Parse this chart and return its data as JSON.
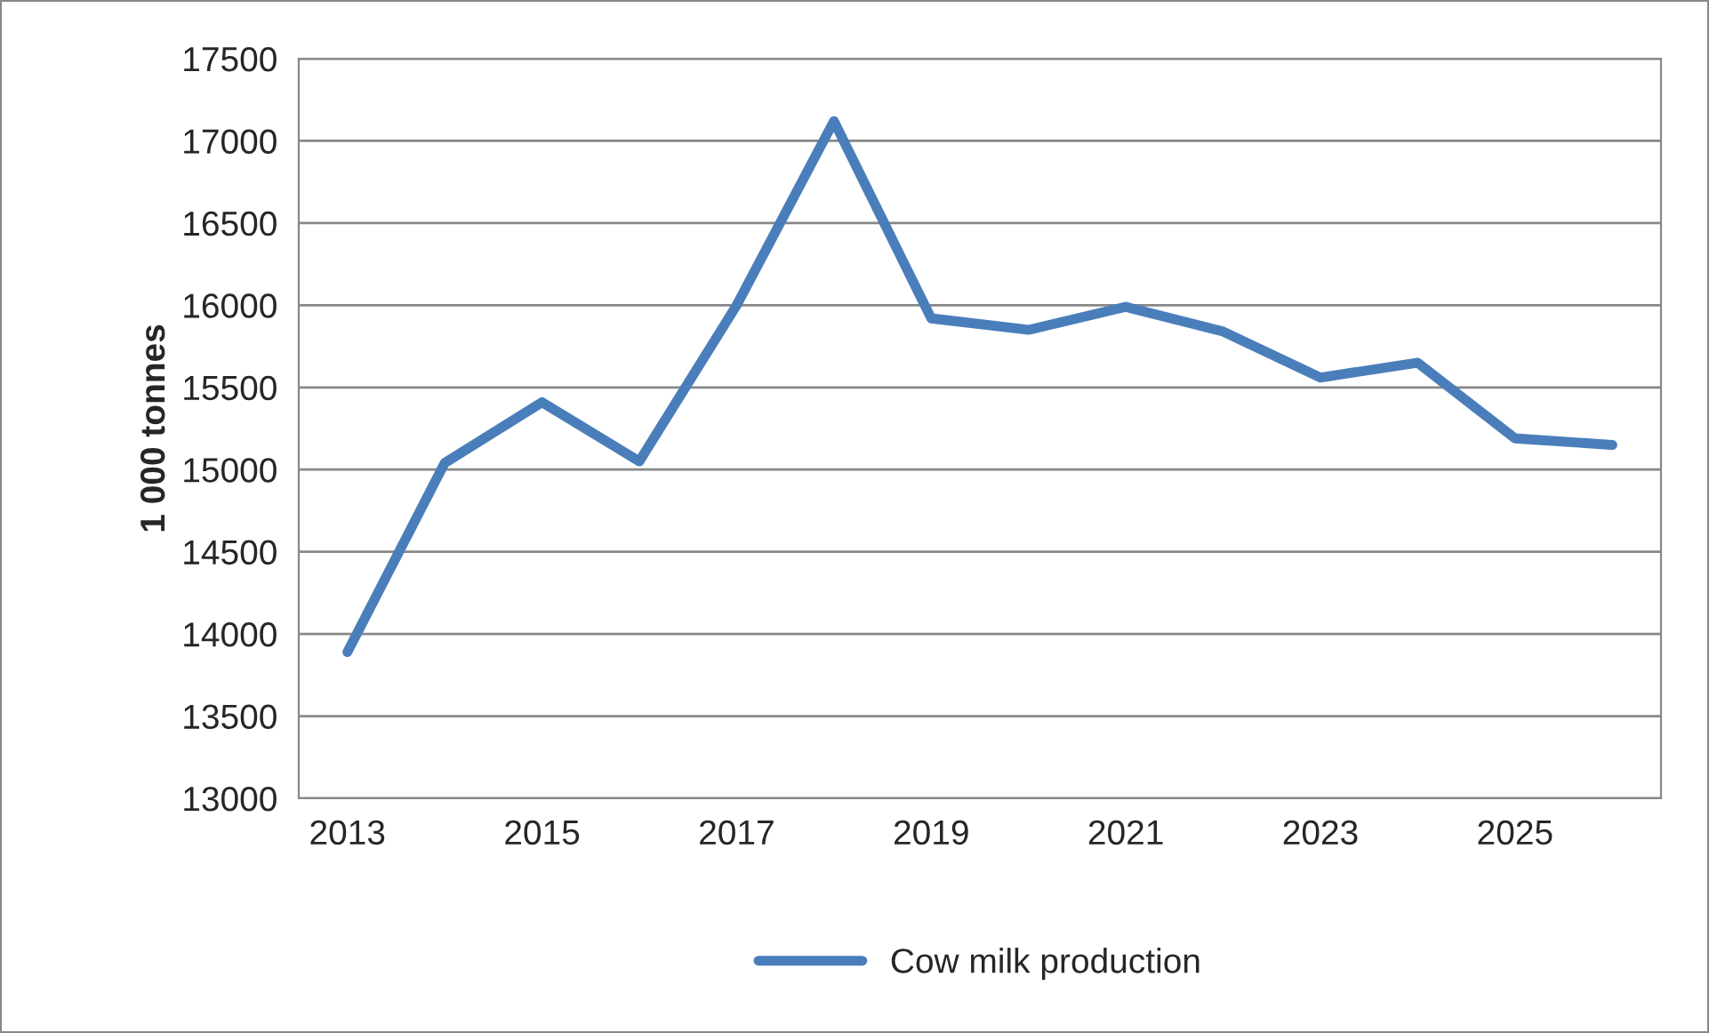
{
  "chart_data": {
    "type": "line",
    "ylabel": "1 000 tonnes",
    "x": [
      2013,
      2014,
      2015,
      2016,
      2017,
      2018,
      2019,
      2020,
      2021,
      2022,
      2023,
      2024,
      2025,
      2026
    ],
    "series": [
      {
        "name": "Cow milk production",
        "color": "#4a7ebb",
        "values": [
          13890,
          15040,
          15410,
          15050,
          16000,
          17120,
          15920,
          15850,
          15990,
          15840,
          15560,
          15650,
          15190,
          15150
        ]
      }
    ],
    "xlim": [
      2012.5,
      2026.5
    ],
    "xticks": [
      2013,
      2015,
      2017,
      2019,
      2021,
      2023,
      2025
    ],
    "ylim": [
      13000,
      17500
    ],
    "yticks": [
      13000,
      13500,
      14000,
      14500,
      15000,
      15500,
      16000,
      16500,
      17000,
      17500
    ],
    "grid": "y",
    "legend": "bottom",
    "marker": "none",
    "line_style": "solid"
  }
}
